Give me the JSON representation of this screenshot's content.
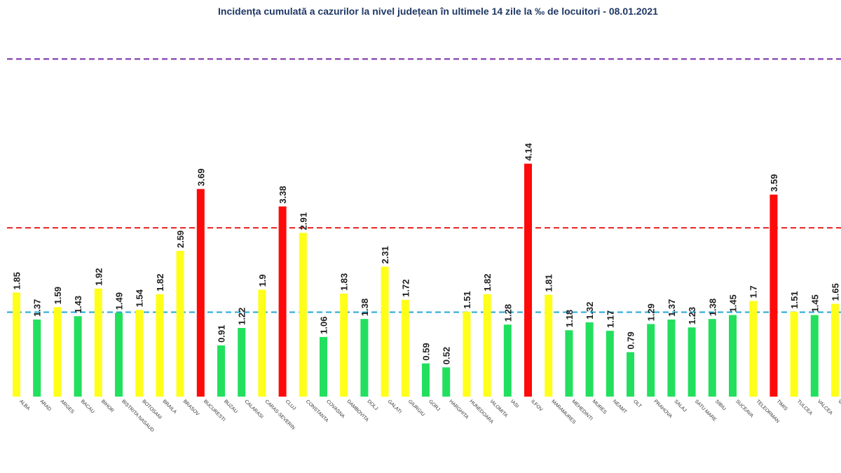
{
  "chart_data": {
    "type": "bar",
    "title": "Incidența cumulată a cazurilor la nivel județean în ultimele 14 zile la ‰ de locuitori - 08.01.2021",
    "xlabel": "",
    "ylabel": "",
    "ylim": [
      0,
      6.0
    ],
    "grid": false,
    "legend": "none",
    "thresholds": [
      {
        "value": 1.5,
        "color": "#1fa7d8",
        "style": "dashed"
      },
      {
        "value": 3.0,
        "color": "#e8201f",
        "style": "dashed"
      },
      {
        "value": 6.0,
        "color": "#7b2fa7",
        "style": "dashed"
      }
    ],
    "colors": {
      "green": "#22e05e",
      "yellow": "#ffff1a",
      "red": "#ff0a0a"
    },
    "categories": [
      "ALBA",
      "ARAD",
      "ARGES",
      "BACAU",
      "BIHOR",
      "BISTRITA NASAUD",
      "BOTOSANI",
      "BRAILA",
      "BRASOV",
      "BUCURESTI",
      "BUZAU",
      "CALARASI",
      "CARAS-SEVERIN",
      "CLUJ",
      "CONSTANTA",
      "COVASNA",
      "DAMBOVITA",
      "DOLJ",
      "GALATI",
      "GIURGIU",
      "GORJ",
      "HARGHITA",
      "HUNEDOARA",
      "IALOMITA",
      "IASI",
      "ILFOV",
      "MARAMURES",
      "MEHEDINTI",
      "MURES",
      "NEAMT",
      "OLT",
      "PRAHOVA",
      "SALAJ",
      "SATU MARE",
      "SIBIU",
      "SUCEAVA",
      "TELEORMAN",
      "TIMIS",
      "TULCEA",
      "VALCEA",
      "VASLUI"
    ],
    "values": [
      1.85,
      1.37,
      1.59,
      1.43,
      1.92,
      1.49,
      1.54,
      1.82,
      2.59,
      3.69,
      0.91,
      1.22,
      1.9,
      3.38,
      2.91,
      1.06,
      1.83,
      1.38,
      2.31,
      1.72,
      0.59,
      0.52,
      1.51,
      1.82,
      1.28,
      4.14,
      1.81,
      1.18,
      1.32,
      1.17,
      0.79,
      1.29,
      1.37,
      1.23,
      1.38,
      1.45,
      1.7,
      3.59,
      1.51,
      1.45,
      1.65
    ],
    "value_labels": [
      "1.85",
      "1.37",
      "1.59",
      "1.43",
      "1.92",
      "1.49",
      "1.54",
      "1.82",
      "2.59",
      "3.69",
      "0.91",
      "1.22",
      "1.9",
      "3.38",
      "2.91",
      "1.06",
      "1.83",
      "1.38",
      "2.31",
      "1.72",
      "0.59",
      "0.52",
      "1.51",
      "1.82",
      "1.28",
      "4.14",
      "1.81",
      "1.18",
      "1.32",
      "1.17",
      "0.79",
      "1.29",
      "1.37",
      "1.23",
      "1.38",
      "1.45",
      "1.7",
      "3.59",
      "1.51",
      "1.45",
      "1.65"
    ],
    "bar_colors": [
      "yellow",
      "green",
      "yellow",
      "green",
      "yellow",
      "green",
      "yellow",
      "yellow",
      "yellow",
      "red",
      "green",
      "green",
      "yellow",
      "red",
      "yellow",
      "green",
      "yellow",
      "green",
      "yellow",
      "yellow",
      "green",
      "green",
      "yellow",
      "yellow",
      "green",
      "red",
      "yellow",
      "green",
      "green",
      "green",
      "green",
      "green",
      "green",
      "green",
      "green",
      "green",
      "yellow",
      "red",
      "yellow",
      "green",
      "yellow"
    ]
  }
}
